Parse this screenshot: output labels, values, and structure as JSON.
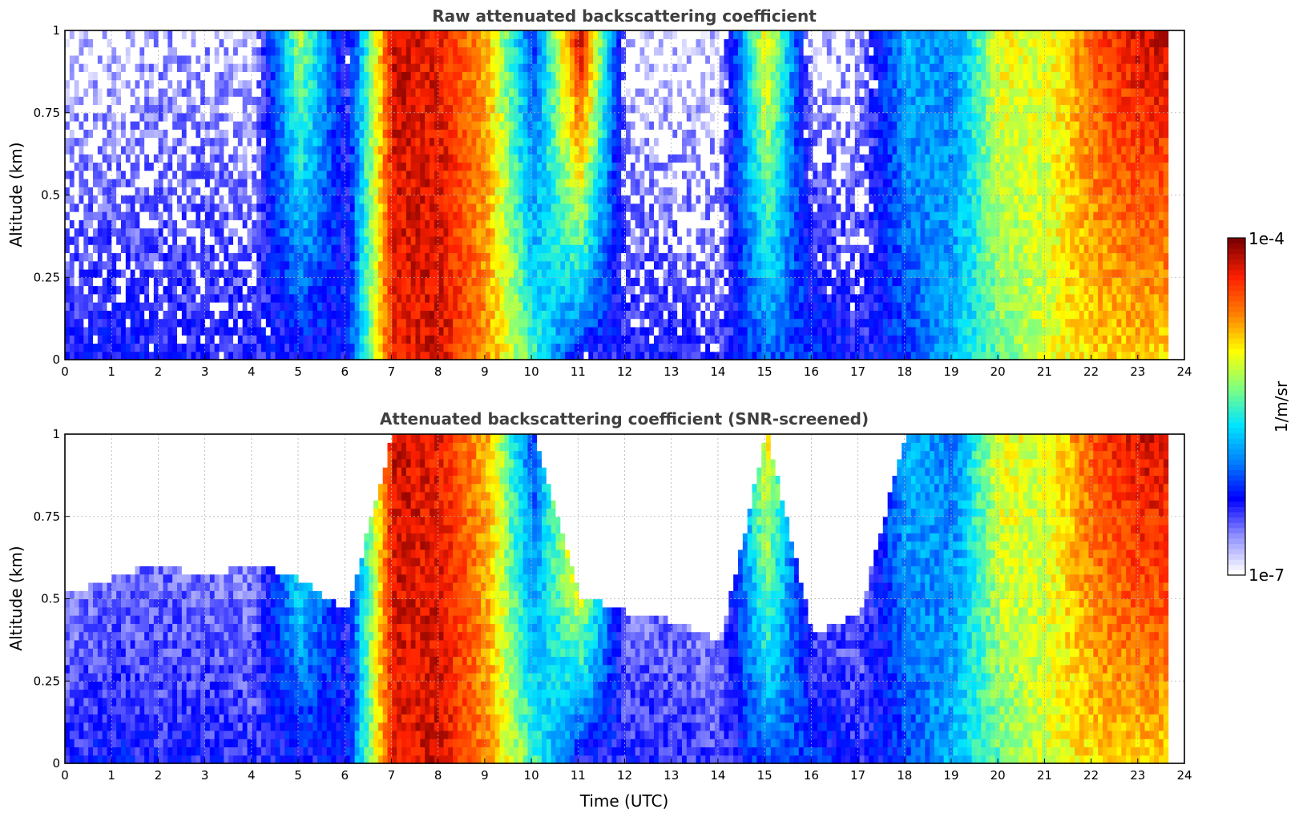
{
  "colors": {
    "colormap": [
      "#ffffff",
      "#8f8fff",
      "#0000ff",
      "#0080ff",
      "#00e5ff",
      "#7fff80",
      "#ffff00",
      "#ff8000",
      "#ff2000",
      "#7f0000"
    ],
    "screened_dark": "#000000",
    "title_text": "#404040",
    "grid": "#b0b0b0"
  },
  "chart_data": [
    {
      "type": "heatmap",
      "title": "Raw attenuated backscattering coefficient",
      "xlabel": "",
      "ylabel": "Altitude (km)",
      "xlim": [
        0,
        24
      ],
      "ylim": [
        0,
        1
      ],
      "x_ticks": [
        "0",
        "1",
        "2",
        "3",
        "4",
        "5",
        "6",
        "7",
        "8",
        "9",
        "10",
        "11",
        "12",
        "13",
        "14",
        "15",
        "16",
        "17",
        "18",
        "19",
        "20",
        "21",
        "22",
        "23",
        "24"
      ],
      "y_ticks": [
        "0",
        "0.25",
        "0.5",
        "0.75",
        "1"
      ],
      "grid": true,
      "data_end_hour": 23.65,
      "time_hours": [
        0,
        1,
        2,
        3,
        4,
        5,
        6,
        7,
        8,
        9,
        10,
        11,
        12,
        13,
        14,
        15,
        16,
        17,
        18,
        19,
        20,
        21,
        22,
        23
      ],
      "log10_backscatter_near_surface": [
        -6.4,
        -6.3,
        -6.4,
        -6.4,
        -6.4,
        -6.4,
        -6.3,
        -4.3,
        -4.2,
        -4.7,
        -5.5,
        -6.4,
        -6.4,
        -6.4,
        -6.5,
        -6.1,
        -6.2,
        -6.4,
        -6.2,
        -5.8,
        -5.4,
        -5.1,
        -4.9,
        -4.9
      ],
      "log10_backscatter_top": [
        -6.8,
        -6.8,
        -6.7,
        -6.7,
        -6.8,
        -5.2,
        -6.5,
        -4.2,
        -4.3,
        -4.8,
        -6.2,
        -4.1,
        -6.8,
        -6.8,
        -6.8,
        -4.9,
        -6.8,
        -6.7,
        -5.8,
        -6.0,
        -5.0,
        -5.1,
        -4.5,
        -4.2
      ]
    },
    {
      "type": "heatmap",
      "title": "Attenuated backscattering coefficient (SNR-screened)",
      "xlabel": "Time (UTC)",
      "ylabel": "Altitude (km)",
      "xlim": [
        0,
        24
      ],
      "ylim": [
        0,
        1
      ],
      "x_ticks": [
        "0",
        "1",
        "2",
        "3",
        "4",
        "5",
        "6",
        "7",
        "8",
        "9",
        "10",
        "11",
        "12",
        "13",
        "14",
        "15",
        "16",
        "17",
        "18",
        "19",
        "20",
        "21",
        "22",
        "23",
        "24"
      ],
      "y_ticks": [
        "0",
        "0.25",
        "0.5",
        "0.75",
        "1"
      ],
      "grid": true,
      "data_end_hour": 23.65,
      "time_hours": [
        0,
        1,
        2,
        3,
        4,
        5,
        6,
        7,
        8,
        9,
        10,
        11,
        12,
        13,
        14,
        15,
        16,
        17,
        18,
        19,
        20,
        21,
        22,
        23
      ],
      "screened_top_km": [
        0.5,
        0.55,
        0.6,
        0.55,
        0.6,
        0.55,
        0.45,
        1.0,
        1.0,
        1.0,
        1.0,
        0.5,
        0.45,
        0.42,
        0.36,
        1.0,
        0.38,
        0.45,
        1.0,
        1.0,
        1.0,
        1.0,
        1.0,
        1.0
      ]
    }
  ],
  "colorbar": {
    "label": "1/m/sr",
    "max_label": "1e-4",
    "min_label": "1e-7",
    "range_log10": [
      -7,
      -4
    ],
    "n_bins": 64
  }
}
